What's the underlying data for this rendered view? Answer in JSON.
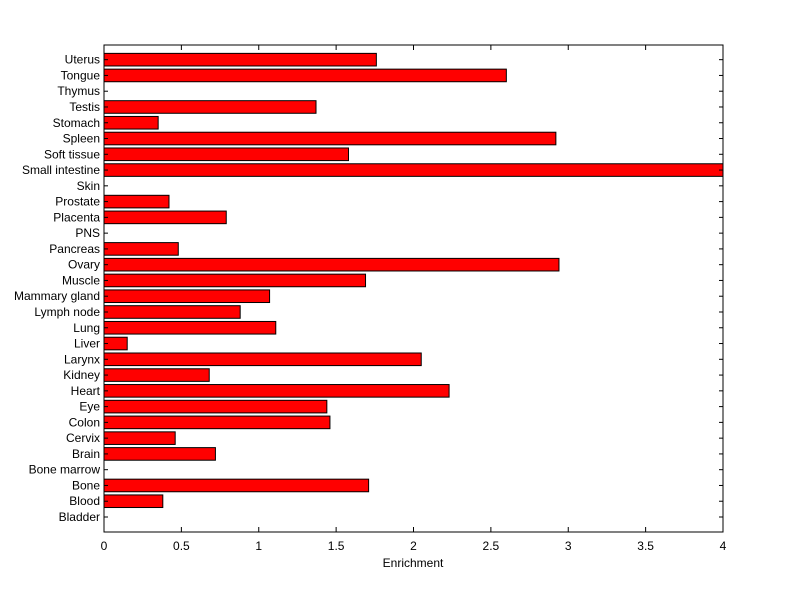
{
  "chart_data": {
    "type": "bar",
    "orientation": "horizontal",
    "categories": [
      "Bladder",
      "Blood",
      "Bone",
      "Bone marrow",
      "Brain",
      "Cervix",
      "Colon",
      "Eye",
      "Heart",
      "Kidney",
      "Larynx",
      "Liver",
      "Lung",
      "Lymph node",
      "Mammary gland",
      "Muscle",
      "Ovary",
      "Pancreas",
      "PNS",
      "Placenta",
      "Prostate",
      "Skin",
      "Small intestine",
      "Soft tissue",
      "Spleen",
      "Stomach",
      "Testis",
      "Thymus",
      "Tongue",
      "Uterus"
    ],
    "values": [
      0,
      0.38,
      1.71,
      0,
      0.72,
      0.46,
      1.46,
      1.44,
      2.23,
      0.68,
      2.05,
      0.15,
      1.11,
      0.88,
      1.07,
      1.69,
      2.94,
      0.48,
      0,
      0.79,
      0.42,
      0,
      4.0,
      1.58,
      2.92,
      0.35,
      1.37,
      0,
      2.6,
      1.76
    ],
    "xlabel": "Enrichment",
    "xlim": [
      0,
      4
    ],
    "xticks": [
      "0",
      "0.5",
      "1",
      "1.5",
      "2",
      "2.5",
      "3",
      "3.5",
      "4"
    ],
    "bar_color": "#ff0000",
    "edge_color": "#000000",
    "grid": false,
    "legend": "none"
  }
}
